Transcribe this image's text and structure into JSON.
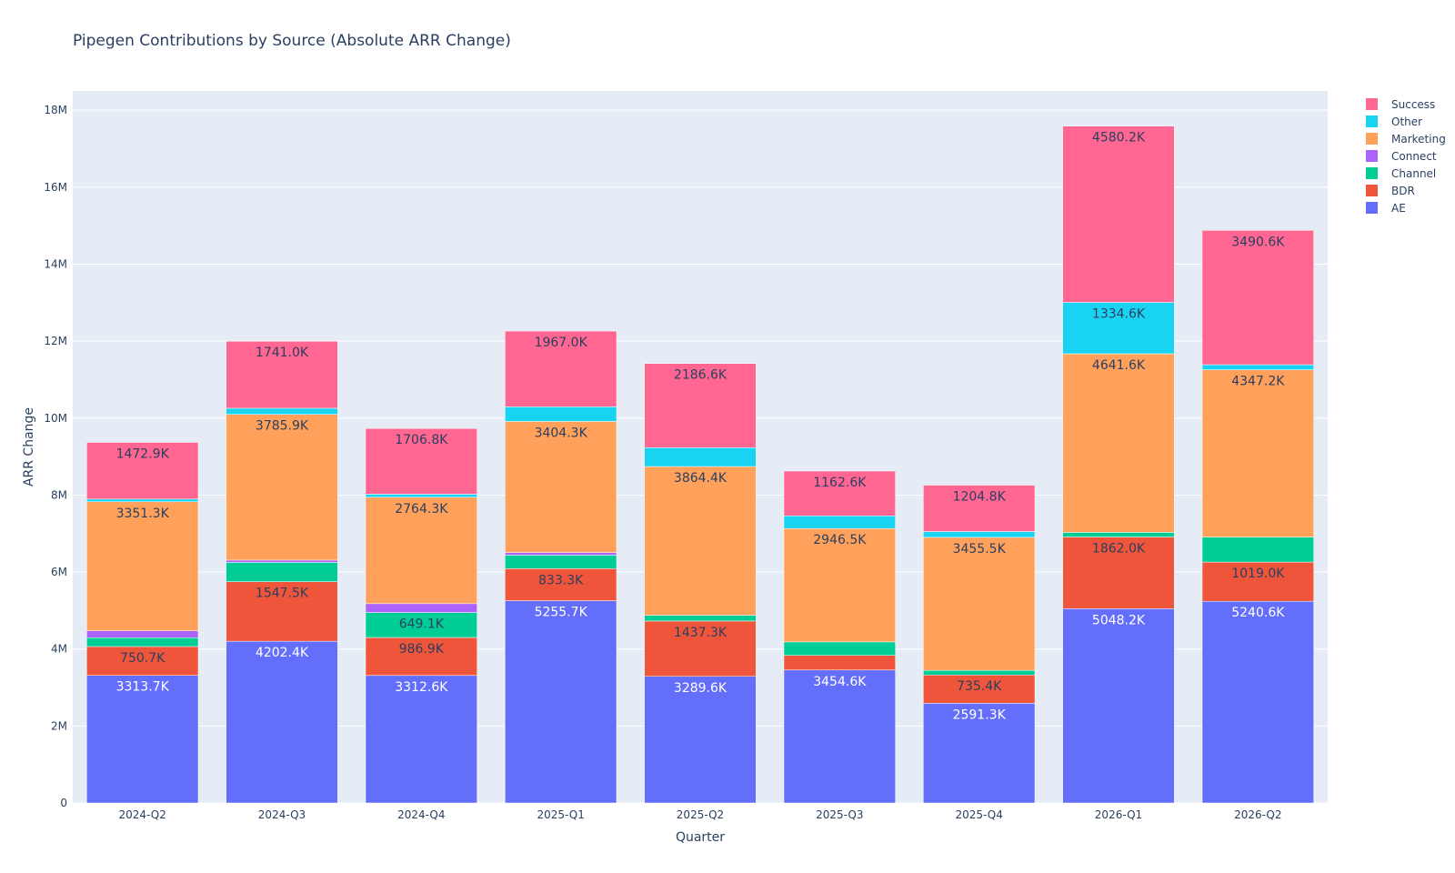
{
  "chart_data": {
    "type": "bar",
    "stacked": true,
    "title": "Pipegen Contributions by Source (Absolute ARR Change)",
    "xlabel": "Quarter",
    "ylabel": "ARR Change",
    "ylim": [
      0,
      18500000
    ],
    "yticks": [
      0,
      2000000,
      4000000,
      6000000,
      8000000,
      10000000,
      12000000,
      14000000,
      16000000,
      18000000
    ],
    "ytick_labels": [
      "0",
      "2M",
      "4M",
      "6M",
      "8M",
      "10M",
      "12M",
      "14M",
      "16M",
      "18M"
    ],
    "grid": true,
    "legend_position": "top-right",
    "categories": [
      "2024-Q2",
      "2024-Q3",
      "2024-Q4",
      "2025-Q1",
      "2025-Q2",
      "2025-Q3",
      "2025-Q4",
      "2026-Q1",
      "2026-Q2"
    ],
    "series": [
      {
        "name": "AE",
        "color": "#636efa",
        "label_color": "#ffffff",
        "values": [
          3313700,
          4202400,
          3312600,
          5255700,
          3289600,
          3454600,
          2591300,
          5048200,
          5240600
        ],
        "labels": [
          "3313.7K",
          "4202.4K",
          "3312.6K",
          "5255.7K",
          "3289.6K",
          "3454.6K",
          "2591.3K",
          "5048.2K",
          "5240.6K"
        ]
      },
      {
        "name": "BDR",
        "color": "#ef553b",
        "label_color": "#2a3f5f",
        "values": [
          750700,
          1547500,
          986900,
          833300,
          1437300,
          380000,
          735400,
          1862000,
          1019000
        ],
        "labels": [
          "750.7K",
          "1547.5K",
          "986.9K",
          "833.3K",
          "1437.3K",
          "",
          "735.4K",
          "1862.0K",
          "1019.0K"
        ]
      },
      {
        "name": "Channel",
        "color": "#00cc96",
        "label_color": "#2a3f5f",
        "values": [
          230000,
          500000,
          649100,
          350000,
          150000,
          350000,
          120000,
          120000,
          650000
        ],
        "labels": [
          "",
          "",
          "649.1K",
          "",
          "",
          "",
          "",
          "",
          ""
        ]
      },
      {
        "name": "Connect",
        "color": "#ab63fa",
        "label_color": "#2a3f5f",
        "values": [
          180000,
          60000,
          230000,
          70000,
          0,
          0,
          0,
          0,
          0
        ],
        "labels": [
          "",
          "",
          "",
          "",
          "",
          "",
          "",
          "",
          ""
        ]
      },
      {
        "name": "Marketing",
        "color": "#ffa15a",
        "label_color": "#2a3f5f",
        "values": [
          3351300,
          3785900,
          2764300,
          3404300,
          3864400,
          2946500,
          3455500,
          4641600,
          4347200
        ],
        "labels": [
          "3351.3K",
          "3785.9K",
          "2764.3K",
          "3404.3K",
          "3864.4K",
          "2946.5K",
          "3455.5K",
          "4641.6K",
          "4347.2K"
        ]
      },
      {
        "name": "Other",
        "color": "#19d3f3",
        "label_color": "#2a3f5f",
        "values": [
          70000,
          160000,
          80000,
          380000,
          490000,
          330000,
          150000,
          1334600,
          130000
        ],
        "labels": [
          "",
          "",
          "",
          "",
          "",
          "",
          "",
          "1334.6K",
          ""
        ]
      },
      {
        "name": "Success",
        "color": "#ff6692",
        "label_color": "#2a3f5f",
        "values": [
          1472900,
          1741000,
          1706800,
          1967000,
          2186600,
          1162600,
          1204800,
          4580200,
          3490600
        ],
        "labels": [
          "1472.9K",
          "1741.0K",
          "1706.8K",
          "1967.0K",
          "2186.6K",
          "1162.6K",
          "1204.8K",
          "4580.2K",
          "3490.6K"
        ]
      }
    ]
  }
}
